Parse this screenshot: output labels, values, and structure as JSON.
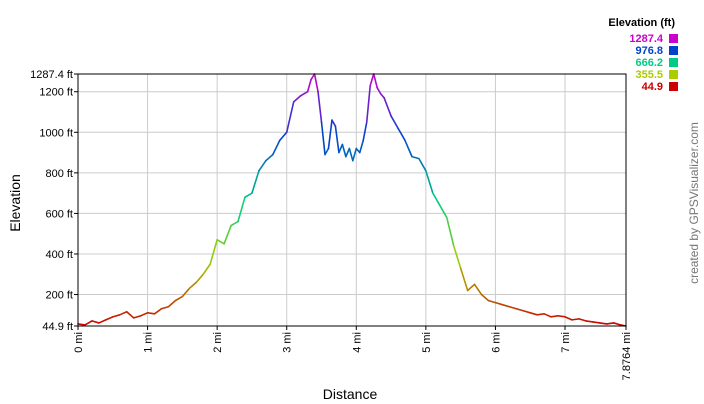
{
  "chart_data": {
    "type": "line",
    "xlabel": "Distance",
    "ylabel": "Elevation",
    "credit": "created by GPSVisualizer.com",
    "xlim": [
      0,
      7.8764
    ],
    "ylim": [
      44.9,
      1287.4
    ],
    "grid": true,
    "x_ticks": [
      {
        "value": 0,
        "label": "0 mi"
      },
      {
        "value": 1,
        "label": "1 mi"
      },
      {
        "value": 2,
        "label": "2 mi"
      },
      {
        "value": 3,
        "label": "3 mi"
      },
      {
        "value": 4,
        "label": "4 mi"
      },
      {
        "value": 5,
        "label": "5 mi"
      },
      {
        "value": 6,
        "label": "6 mi"
      },
      {
        "value": 7,
        "label": "7 mi"
      },
      {
        "value": 7.8764,
        "label": "7.8764 mi"
      }
    ],
    "y_ticks": [
      {
        "value": 44.9,
        "label": "44.9 ft"
      },
      {
        "value": 200,
        "label": "200 ft"
      },
      {
        "value": 400,
        "label": "400 ft"
      },
      {
        "value": 600,
        "label": "600 ft"
      },
      {
        "value": 800,
        "label": "800 ft"
      },
      {
        "value": 1000,
        "label": "1000 ft"
      },
      {
        "value": 1200,
        "label": "1200 ft"
      },
      {
        "value": 1287.4,
        "label": "1287.4 ft"
      }
    ],
    "legend": {
      "title": "Elevation (ft)",
      "placement": "top-right",
      "entries": [
        {
          "label": "1287.4",
          "color": "#cc00cc"
        },
        {
          "label": "976.8",
          "color": "#0044cc"
        },
        {
          "label": "666.2",
          "color": "#00cc88"
        },
        {
          "label": "355.5",
          "color": "#aacc00"
        },
        {
          "label": "44.9",
          "color": "#cc0000"
        }
      ]
    },
    "series": [
      {
        "x": [
          0,
          0.1,
          0.2,
          0.3,
          0.4,
          0.5,
          0.6,
          0.7,
          0.8,
          0.9,
          1.0,
          1.1,
          1.2,
          1.3,
          1.4,
          1.5,
          1.6,
          1.7,
          1.8,
          1.9,
          2.0,
          2.1,
          2.2,
          2.3,
          2.4,
          2.5,
          2.6,
          2.7,
          2.8,
          2.9,
          3.0,
          3.1,
          3.2,
          3.3,
          3.35,
          3.4,
          3.45,
          3.5,
          3.55,
          3.6,
          3.65,
          3.7,
          3.75,
          3.8,
          3.85,
          3.9,
          3.95,
          4.0,
          4.05,
          4.1,
          4.15,
          4.2,
          4.25,
          4.3,
          4.35,
          4.4,
          4.5,
          4.6,
          4.7,
          4.8,
          4.9,
          5.0,
          5.1,
          5.2,
          5.3,
          5.4,
          5.5,
          5.6,
          5.7,
          5.8,
          5.9,
          6.0,
          6.1,
          6.2,
          6.3,
          6.4,
          6.5,
          6.6,
          6.7,
          6.8,
          6.9,
          7.0,
          7.1,
          7.2,
          7.3,
          7.4,
          7.5,
          7.6,
          7.7,
          7.8,
          7.8764
        ],
        "y": [
          55,
          50,
          70,
          60,
          75,
          90,
          100,
          115,
          85,
          95,
          110,
          105,
          130,
          140,
          170,
          190,
          230,
          260,
          300,
          350,
          470,
          450,
          540,
          560,
          680,
          700,
          810,
          860,
          890,
          960,
          1000,
          1150,
          1180,
          1200,
          1260,
          1287.4,
          1200,
          1050,
          890,
          920,
          1060,
          1030,
          900,
          940,
          880,
          920,
          860,
          920,
          900,
          960,
          1050,
          1230,
          1287.4,
          1220,
          1190,
          1170,
          1080,
          1020,
          960,
          880,
          870,
          810,
          700,
          640,
          580,
          440,
          330,
          220,
          250,
          200,
          170,
          160,
          150,
          140,
          130,
          120,
          110,
          100,
          105,
          90,
          95,
          90,
          75,
          80,
          70,
          65,
          60,
          55,
          60,
          50,
          44.9
        ]
      }
    ]
  }
}
